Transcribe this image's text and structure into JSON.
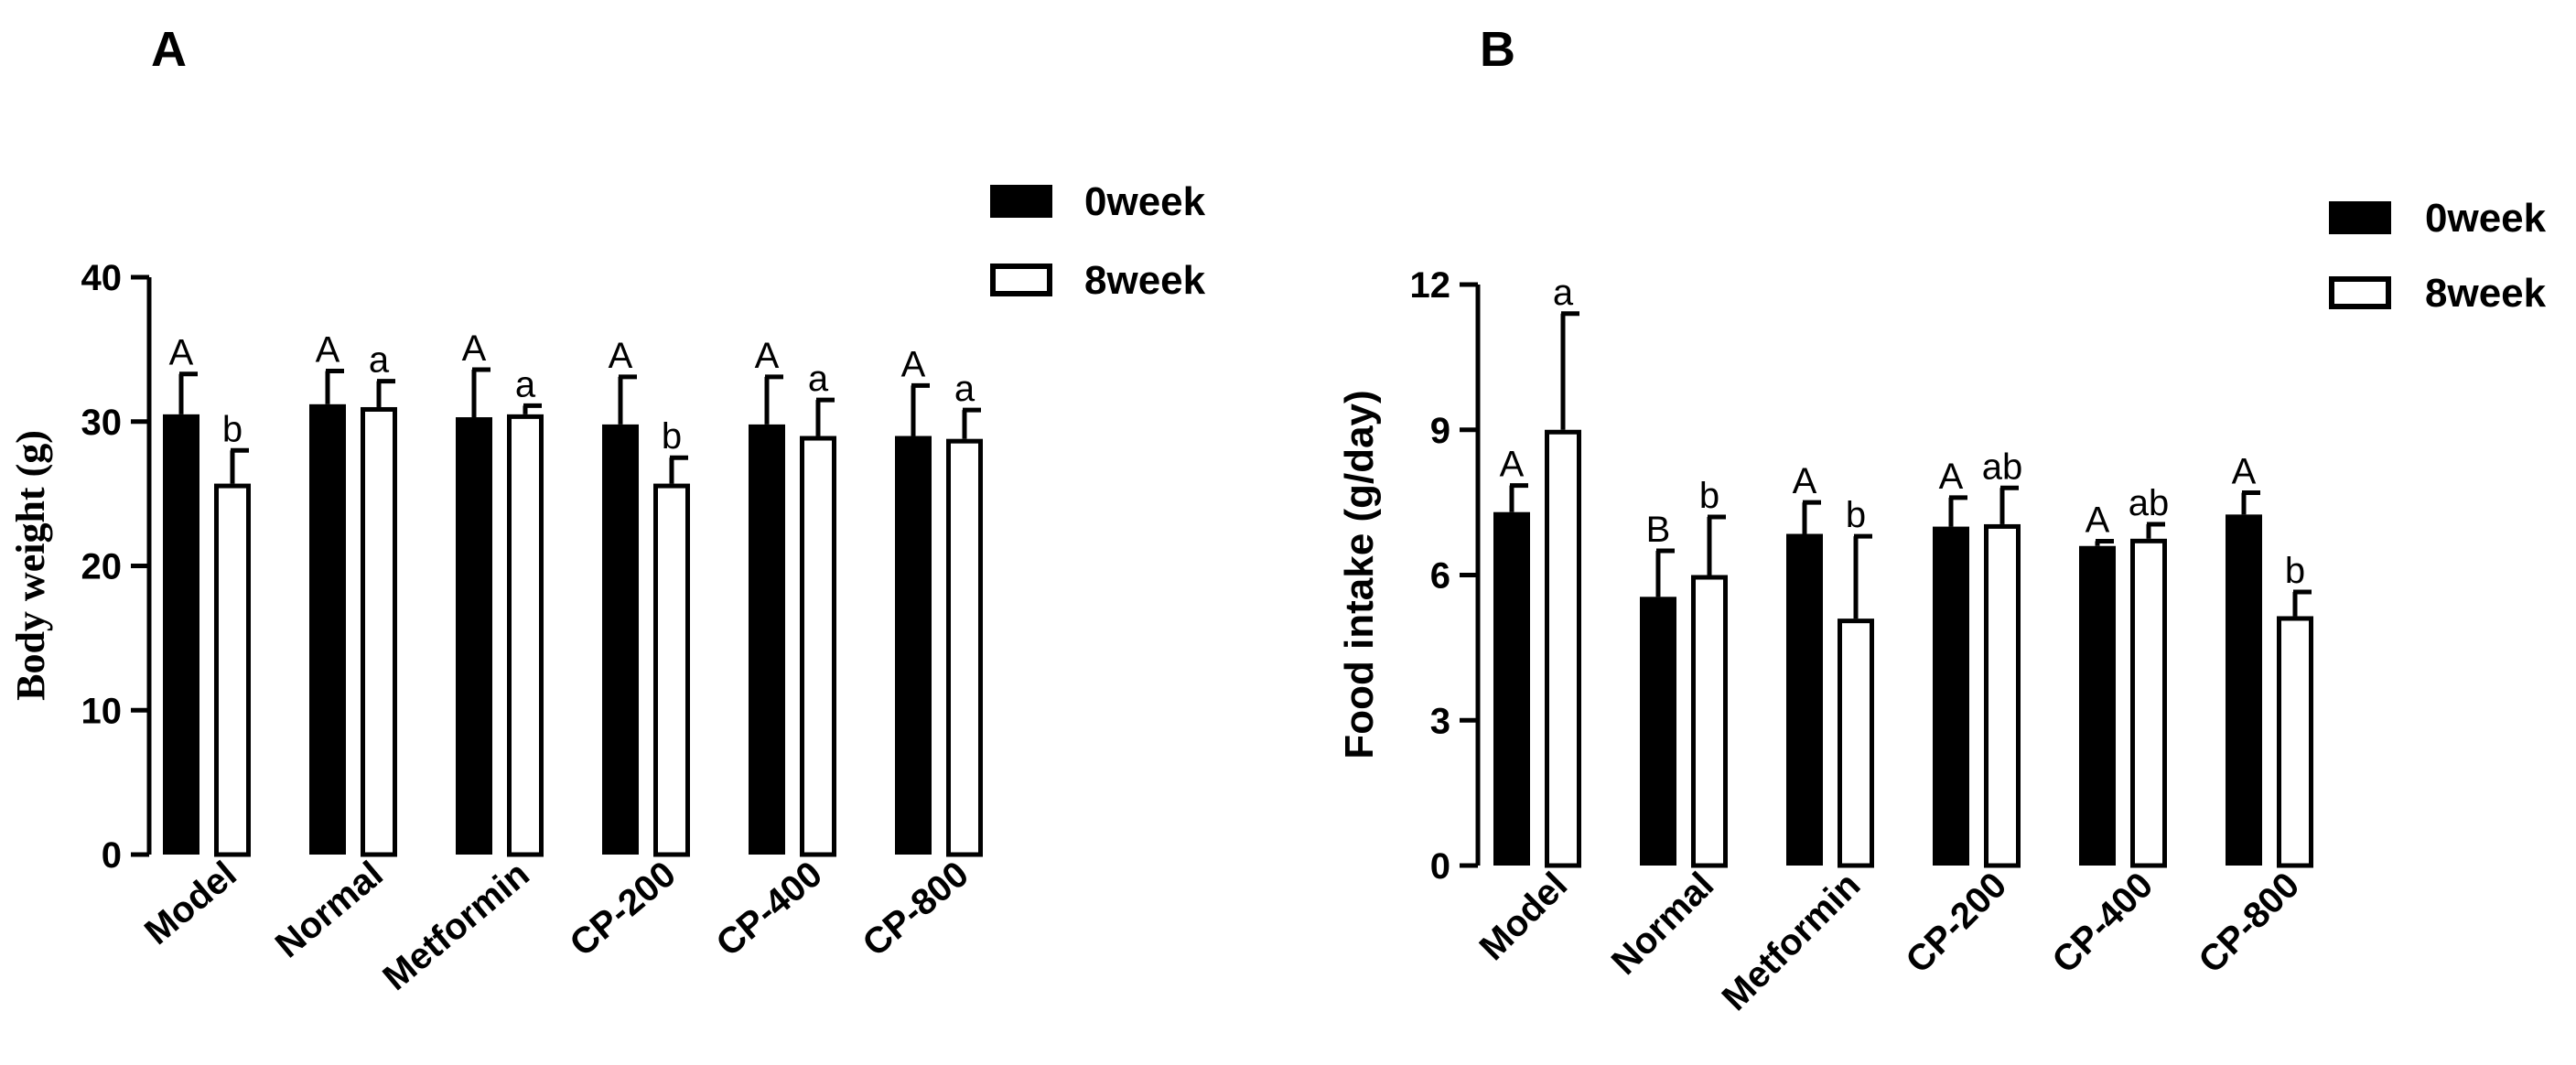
{
  "chart_data": [
    {
      "panel": "A",
      "type": "bar",
      "ylabel": "Body weight (g)",
      "xlabel": "",
      "ylim": [
        0,
        40
      ],
      "yticks": [
        0,
        10,
        20,
        30,
        40
      ],
      "categories": [
        "Model",
        "Normal",
        "Metformin",
        "CP-200",
        "CP-400",
        "CP-800"
      ],
      "legend": [
        "0week",
        "8week"
      ],
      "legend_position": "top-right",
      "series": [
        {
          "name": "0week",
          "fill": "#000000",
          "values": [
            30.5,
            31.2,
            30.3,
            29.8,
            29.8,
            29.0
          ],
          "errors": [
            2.8,
            2.3,
            3.3,
            3.3,
            3.3,
            3.5
          ],
          "letters": [
            "A",
            "A",
            "A",
            "A",
            "A",
            "A"
          ]
        },
        {
          "name": "8week",
          "fill": "#ffffff",
          "values": [
            25.7,
            31.0,
            30.5,
            25.7,
            29.0,
            28.8
          ],
          "errors": [
            2.3,
            1.8,
            0.6,
            1.8,
            2.5,
            2.0
          ],
          "letters": [
            "b",
            "a",
            "a",
            "b",
            "a",
            "a"
          ]
        }
      ]
    },
    {
      "panel": "B",
      "type": "bar",
      "ylabel": "Food intake (g/day)",
      "xlabel": "",
      "ylim": [
        0,
        12
      ],
      "yticks": [
        0,
        3,
        6,
        9,
        12
      ],
      "categories": [
        "Model",
        "Normal",
        "Metformin",
        "CP-200",
        "CP-400",
        "CP-800"
      ],
      "legend": [
        "0week",
        "8week"
      ],
      "legend_position": "top-right",
      "series": [
        {
          "name": "0week",
          "fill": "#000000",
          "values": [
            7.3,
            5.55,
            6.85,
            7.0,
            6.6,
            7.25
          ],
          "errors": [
            0.55,
            0.95,
            0.65,
            0.6,
            0.1,
            0.45
          ],
          "letters": [
            "A",
            "B",
            "A",
            "A",
            "A",
            "A"
          ]
        },
        {
          "name": "8week",
          "fill": "#ffffff",
          "values": [
            9.0,
            6.0,
            5.1,
            7.05,
            6.75,
            5.15
          ],
          "errors": [
            2.4,
            1.2,
            1.7,
            0.75,
            0.3,
            0.5
          ],
          "letters": [
            "a",
            "b",
            "b",
            "ab",
            "ab",
            "b"
          ]
        }
      ]
    }
  ]
}
